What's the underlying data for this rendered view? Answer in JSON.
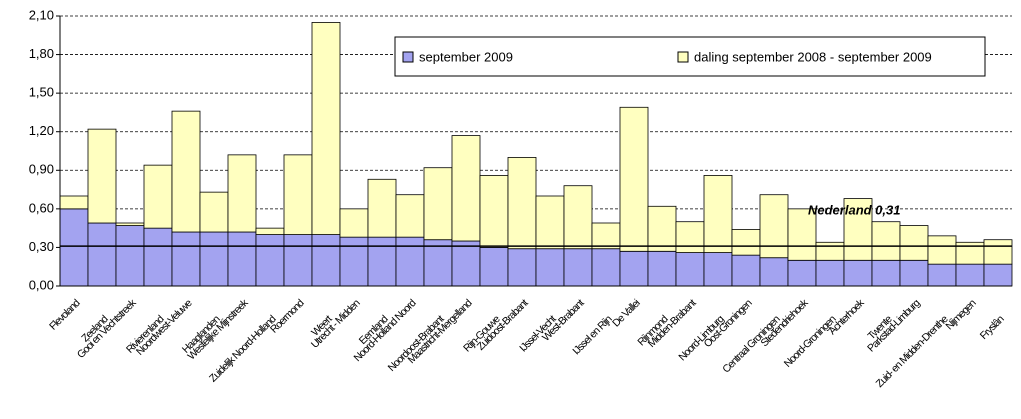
{
  "chart_data": {
    "type": "stacked_bar",
    "categories": [
      "Flevoland",
      "Zeeland",
      "Gooi en Vechtstreek",
      "Rivierenland",
      "Noordwest-Veluwe",
      "Haaglanden",
      "Westelijke Mijnstreek",
      "Zuidelijk Noord-Holland",
      "Roermond",
      "Weert",
      "Utrecht - Midden",
      "Eemland",
      "Noord-Holland Noord",
      "Noordoost-Brabant",
      "Maastricht-Mergelland",
      "Rijn-Gouwe",
      "Zuidoost-Brabant",
      "IJssel-Vecht",
      "West-Brabant",
      "IJssel en Rijn",
      "De Vallei",
      "Rijnmond",
      "Midden-Brabant",
      "Noord-Limburg",
      "Oost-Groningen",
      "Centraal Groningen",
      "Stedendriehoek",
      "Noord-Groningen",
      "Achterhoek",
      "Twente",
      "Parkstad-Limburg",
      "Zuid- en Midden-Drenthe",
      "Nijmegen",
      "Fryslân"
    ],
    "series": [
      {
        "name": "september 2009",
        "color": "#a3a3f0",
        "values": [
          0.6,
          0.49,
          0.47,
          0.45,
          0.42,
          0.42,
          0.42,
          0.4,
          0.4,
          0.4,
          0.38,
          0.38,
          0.38,
          0.36,
          0.35,
          0.3,
          0.29,
          0.29,
          0.29,
          0.29,
          0.27,
          0.27,
          0.26,
          0.26,
          0.24,
          0.22,
          0.2,
          0.2,
          0.2,
          0.2,
          0.2,
          0.17,
          0.17,
          0.17
        ]
      },
      {
        "name": "daling september 2008 - september 2009",
        "color": "#ffffc0",
        "values": [
          0.1,
          0.73,
          0.02,
          0.49,
          0.94,
          0.31,
          0.6,
          0.05,
          0.62,
          1.65,
          0.22,
          0.45,
          0.33,
          0.56,
          0.82,
          0.56,
          0.71,
          0.41,
          0.49,
          0.2,
          1.12,
          0.35,
          0.24,
          0.6,
          0.2,
          0.49,
          0.4,
          0.14,
          0.48,
          0.3,
          0.27,
          0.22,
          0.17,
          0.19
        ]
      }
    ],
    "ylim": [
      0,
      2.1
    ],
    "yticks": [
      {
        "value": 0,
        "label": "0,00"
      },
      {
        "value": 0.3,
        "label": "0,30"
      },
      {
        "value": 0.6,
        "label": "0,60"
      },
      {
        "value": 0.9,
        "label": "0,90"
      },
      {
        "value": 1.2,
        "label": "1,20"
      },
      {
        "value": 1.5,
        "label": "1,50"
      },
      {
        "value": 1.8,
        "label": "1,80"
      },
      {
        "value": 2.1,
        "label": "2,10"
      }
    ],
    "grid": true,
    "legend": "top-right",
    "reference": {
      "label": "Nederland 0,31",
      "value": 0.31
    }
  }
}
